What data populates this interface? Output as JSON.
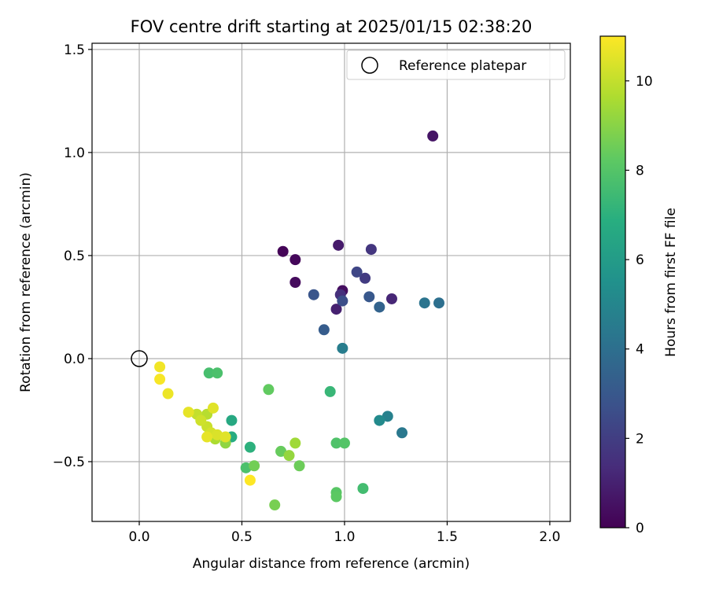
{
  "chart_data": {
    "type": "scatter",
    "title": "FOV centre drift starting at 2025/01/15 02:38:20",
    "xlabel": "Angular distance from reference (arcmin)",
    "ylabel": "Rotation from reference (arcmin)",
    "xlim": [
      -0.23,
      2.1
    ],
    "ylim": [
      -0.79,
      1.53
    ],
    "xticks": [
      0.0,
      0.5,
      1.0,
      1.5,
      2.0
    ],
    "xtick_labels": [
      "0.0",
      "0.5",
      "1.0",
      "1.5",
      "2.0"
    ],
    "yticks": [
      -0.5,
      0.0,
      0.5,
      1.0,
      1.5
    ],
    "ytick_labels": [
      "−0.5",
      "0.0",
      "0.5",
      "1.0",
      "1.5"
    ],
    "grid": true,
    "legend": {
      "position": "top-right",
      "entries": [
        "Reference platepar"
      ]
    },
    "colorbar": {
      "label": "Hours from first FF file",
      "range": [
        0,
        11
      ],
      "ticks": [
        0,
        2,
        4,
        6,
        8,
        10
      ],
      "tick_labels": [
        "0",
        "2",
        "4",
        "6",
        "8",
        "10"
      ],
      "colormap": "viridis"
    },
    "reference_point": {
      "x": 0.0,
      "y": 0.0,
      "name": "Reference platepar"
    },
    "points": [
      {
        "x": 0.7,
        "y": 0.52,
        "h": 0.1
      },
      {
        "x": 0.76,
        "y": 0.48,
        "h": 0.2
      },
      {
        "x": 0.76,
        "y": 0.37,
        "h": 0.3
      },
      {
        "x": 0.99,
        "y": 0.33,
        "h": 0.4
      },
      {
        "x": 1.43,
        "y": 1.08,
        "h": 0.6
      },
      {
        "x": 0.97,
        "y": 0.55,
        "h": 0.8
      },
      {
        "x": 0.96,
        "y": 0.24,
        "h": 1.0
      },
      {
        "x": 1.23,
        "y": 0.29,
        "h": 1.2
      },
      {
        "x": 0.98,
        "y": 0.31,
        "h": 1.5
      },
      {
        "x": 1.13,
        "y": 0.53,
        "h": 1.7
      },
      {
        "x": 1.1,
        "y": 0.39,
        "h": 1.9
      },
      {
        "x": 1.06,
        "y": 0.42,
        "h": 2.3
      },
      {
        "x": 0.99,
        "y": 0.28,
        "h": 2.6
      },
      {
        "x": 0.85,
        "y": 0.31,
        "h": 2.9
      },
      {
        "x": 1.12,
        "y": 0.3,
        "h": 3.0
      },
      {
        "x": 0.9,
        "y": 0.14,
        "h": 3.2
      },
      {
        "x": 1.17,
        "y": 0.25,
        "h": 3.5
      },
      {
        "x": 1.46,
        "y": 0.27,
        "h": 4.0
      },
      {
        "x": 1.39,
        "y": 0.27,
        "h": 4.2
      },
      {
        "x": 1.28,
        "y": -0.36,
        "h": 4.4
      },
      {
        "x": 0.99,
        "y": 0.05,
        "h": 4.6
      },
      {
        "x": 1.21,
        "y": -0.28,
        "h": 4.8
      },
      {
        "x": 1.17,
        "y": -0.3,
        "h": 5.2
      },
      {
        "x": 0.45,
        "y": -0.3,
        "h": 6.6
      },
      {
        "x": 0.45,
        "y": -0.38,
        "h": 6.8
      },
      {
        "x": 0.54,
        "y": -0.43,
        "h": 7.0
      },
      {
        "x": 0.93,
        "y": -0.16,
        "h": 7.3
      },
      {
        "x": 1.09,
        "y": -0.63,
        "h": 7.6
      },
      {
        "x": 0.34,
        "y": -0.07,
        "h": 7.7
      },
      {
        "x": 0.38,
        "y": -0.07,
        "h": 7.8
      },
      {
        "x": 0.52,
        "y": -0.53,
        "h": 7.8
      },
      {
        "x": 0.96,
        "y": -0.41,
        "h": 7.9
      },
      {
        "x": 1.0,
        "y": -0.41,
        "h": 8.0
      },
      {
        "x": 0.96,
        "y": -0.65,
        "h": 8.1
      },
      {
        "x": 0.96,
        "y": -0.67,
        "h": 8.2
      },
      {
        "x": 0.63,
        "y": -0.15,
        "h": 8.3
      },
      {
        "x": 0.69,
        "y": -0.45,
        "h": 8.4
      },
      {
        "x": 0.78,
        "y": -0.52,
        "h": 8.5
      },
      {
        "x": 0.56,
        "y": -0.52,
        "h": 8.6
      },
      {
        "x": 0.66,
        "y": -0.71,
        "h": 8.7
      },
      {
        "x": 0.42,
        "y": -0.41,
        "h": 9.1
      },
      {
        "x": 0.73,
        "y": -0.47,
        "h": 9.2
      },
      {
        "x": 0.76,
        "y": -0.41,
        "h": 9.4
      },
      {
        "x": 0.37,
        "y": -0.39,
        "h": 9.6
      },
      {
        "x": 0.33,
        "y": -0.27,
        "h": 9.8
      },
      {
        "x": 0.28,
        "y": -0.27,
        "h": 10.0
      },
      {
        "x": 0.33,
        "y": -0.33,
        "h": 10.1
      },
      {
        "x": 0.3,
        "y": -0.3,
        "h": 10.2
      },
      {
        "x": 0.35,
        "y": -0.36,
        "h": 10.3
      },
      {
        "x": 0.38,
        "y": -0.37,
        "h": 10.4
      },
      {
        "x": 0.42,
        "y": -0.38,
        "h": 10.5
      },
      {
        "x": 0.36,
        "y": -0.24,
        "h": 10.5
      },
      {
        "x": 0.33,
        "y": -0.38,
        "h": 10.6
      },
      {
        "x": 0.24,
        "y": -0.26,
        "h": 10.6
      },
      {
        "x": 0.14,
        "y": -0.17,
        "h": 10.7
      },
      {
        "x": 0.1,
        "y": -0.04,
        "h": 10.8
      },
      {
        "x": 0.1,
        "y": -0.1,
        "h": 10.9
      },
      {
        "x": 0.54,
        "y": -0.59,
        "h": 11.0
      }
    ]
  }
}
